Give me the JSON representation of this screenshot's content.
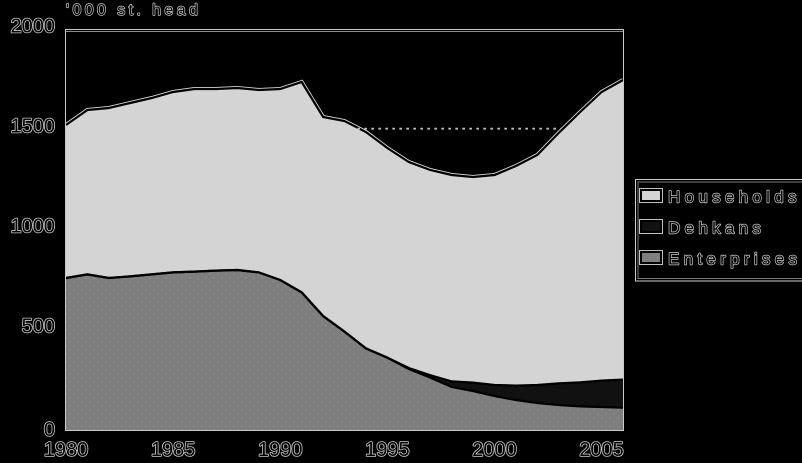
{
  "chart_data": {
    "type": "area",
    "stacked": true,
    "title": "'000 st. head",
    "x": [
      1980,
      1981,
      1982,
      1983,
      1984,
      1985,
      1986,
      1987,
      1988,
      1989,
      1990,
      1991,
      1992,
      1993,
      1994,
      1995,
      1996,
      1997,
      1998,
      1999,
      2000,
      2001,
      2002,
      2003,
      2004,
      2005,
      2006
    ],
    "series": [
      {
        "name": "Enterprises",
        "color": "#7e7e7e",
        "texture": "dots",
        "values": [
          760,
          778,
          760,
          768,
          778,
          788,
          792,
          797,
          800,
          788,
          750,
          688,
          570,
          492,
          408,
          362,
          305,
          262,
          215,
          195,
          170,
          150,
          135,
          125,
          118,
          115,
          112
        ]
      },
      {
        "name": "Dehkans",
        "color": "#111111",
        "values": [
          0,
          0,
          0,
          0,
          0,
          0,
          0,
          0,
          0,
          0,
          0,
          0,
          0,
          0,
          0,
          0,
          5,
          12,
          28,
          42,
          55,
          72,
          90,
          108,
          120,
          132,
          140
        ]
      },
      {
        "name": "Households",
        "color": "#d4d4d4",
        "values": [
          765,
          822,
          850,
          867,
          882,
          902,
          913,
          908,
          910,
          912,
          955,
          1052,
          995,
          1053,
          1082,
          1048,
          1030,
          1026,
          1032,
          1028,
          1050,
          1098,
          1150,
          1252,
          1352,
          1443,
          1498
        ]
      }
    ],
    "legend": [
      "Households",
      "Dehkans",
      "Enterprises"
    ],
    "legend_position": "right",
    "y_ticks": [
      0,
      500,
      1000,
      1500,
      2000
    ],
    "x_ticks": [
      1980,
      1985,
      1990,
      1995,
      2000,
      2005
    ],
    "ylim": [
      0,
      2000
    ],
    "xlim": [
      1980,
      2006
    ],
    "reference_line": {
      "value": 1500,
      "style": "dotted",
      "x_start": 1993.6,
      "x_end": 2003.1
    },
    "background": "#000000",
    "outline_halo": "#c8c8c8"
  }
}
